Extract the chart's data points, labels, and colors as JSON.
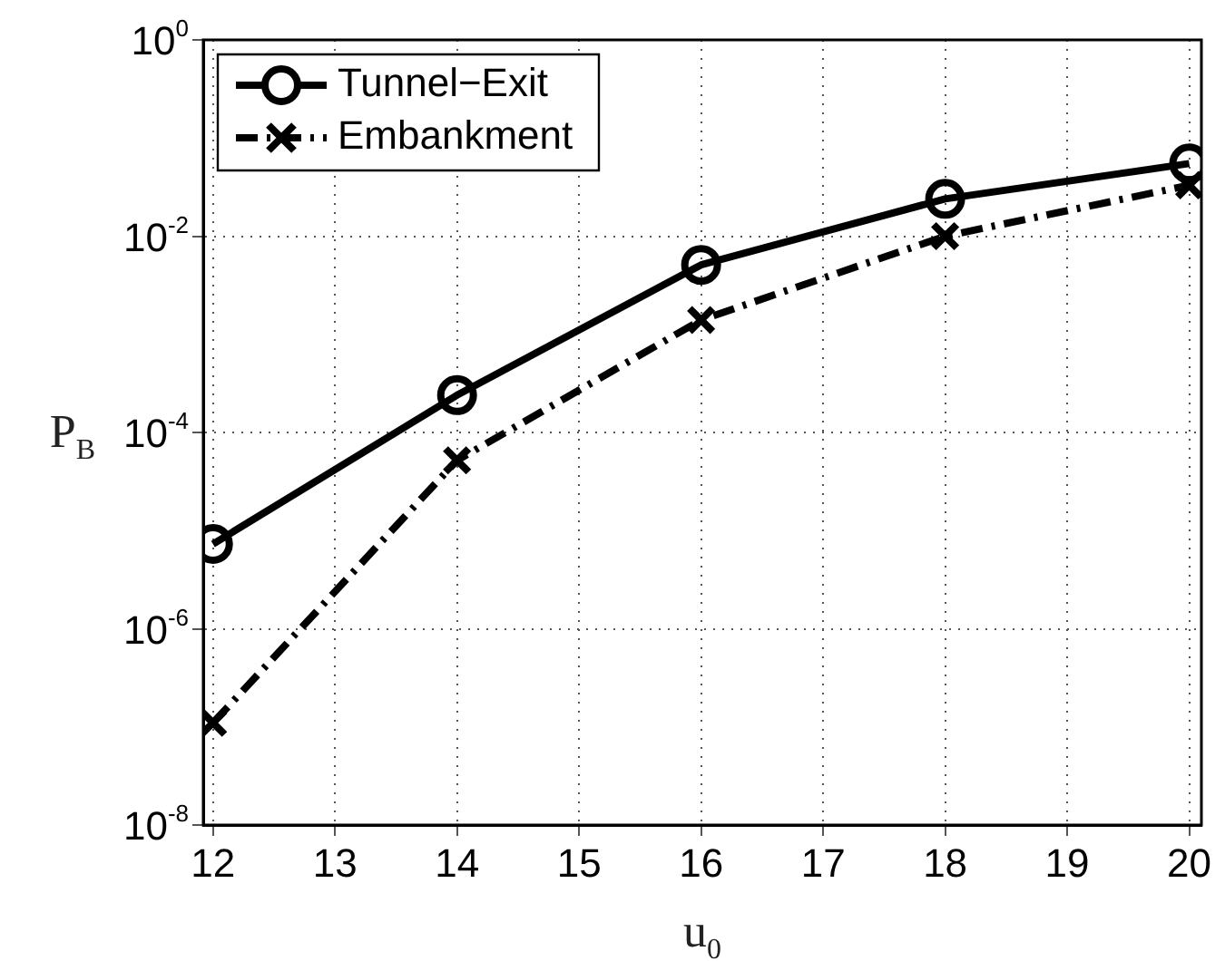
{
  "chart_data": {
    "type": "line",
    "xlabel": "u$_{0}$",
    "ylabel": "P$_{B}$",
    "x": [
      12,
      14,
      16,
      18,
      20
    ],
    "series": [
      {
        "name": "Tunnel−Exit",
        "color": "#000000",
        "marker": "circle",
        "line_style": "solid",
        "values": [
          7.3e-06,
          0.00024,
          0.0051,
          0.024,
          0.055
        ]
      },
      {
        "name": "Embankment",
        "color": "#000000",
        "marker": "cross",
        "line_style": "dashed",
        "values": [
          1.1e-07,
          5.2e-05,
          0.0014,
          0.01,
          0.033
        ]
      }
    ],
    "log": "y",
    "xlim": [
      11.92,
      20.1
    ],
    "xticks": [
      12,
      13,
      14,
      15,
      16,
      17,
      18,
      19,
      20
    ],
    "ylim": [
      1e-08,
      1
    ],
    "yticks": [
      {
        "value": 1e-08,
        "label": "10$^{-8}$"
      },
      {
        "value": 1e-06,
        "label": "10$^{-6}$"
      },
      {
        "value": 0.0001,
        "label": "10$^{-4}$"
      },
      {
        "value": 0.01,
        "label": "10$^{-2}$"
      },
      {
        "value": 1,
        "label": "10$^{0}$"
      }
    ],
    "grid": true,
    "legend": "top left"
  }
}
